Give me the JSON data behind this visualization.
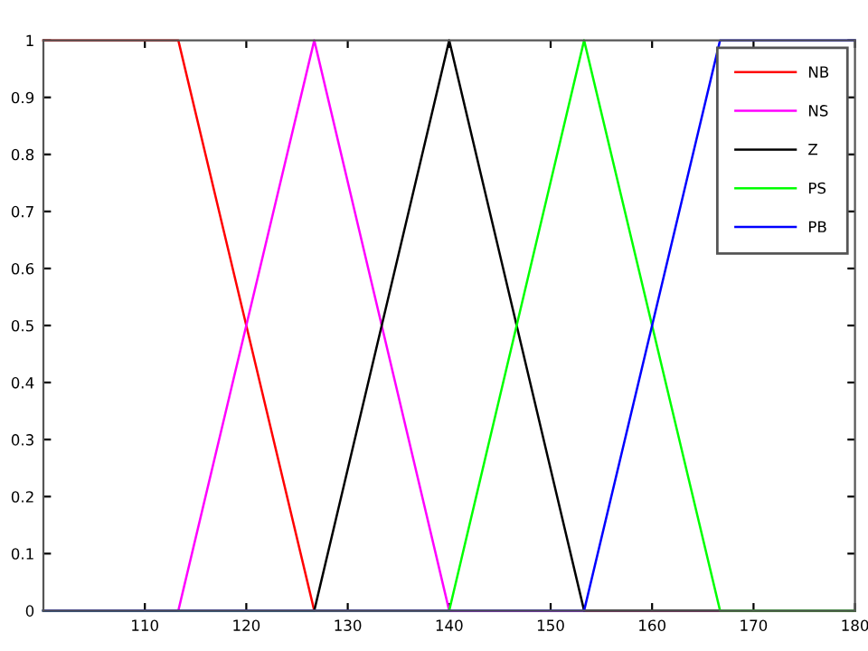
{
  "chart_data": {
    "type": "line",
    "xlim": [
      100,
      180
    ],
    "ylim": [
      0,
      1
    ],
    "xticks": [
      110,
      120,
      130,
      140,
      150,
      160,
      170,
      180
    ],
    "yticks": [
      0,
      0.1,
      0.2,
      0.3,
      0.4,
      0.5,
      0.6,
      0.7,
      0.8,
      0.9,
      1
    ],
    "grid": false,
    "legend": "top right",
    "marker": "none",
    "line_style": "solid",
    "series": [
      {
        "name": "NB",
        "color": "#ff0000",
        "x": [
          100,
          113.3,
          126.7,
          180
        ],
        "values": [
          1,
          1,
          0,
          0
        ]
      },
      {
        "name": "NS",
        "color": "#ff00ff",
        "x": [
          100,
          113.3,
          126.7,
          140,
          180
        ],
        "values": [
          0,
          0,
          1,
          0,
          0
        ]
      },
      {
        "name": "Z",
        "color": "#000000",
        "x": [
          100,
          126.7,
          140,
          153.3,
          180
        ],
        "values": [
          0,
          0,
          1,
          0,
          0
        ]
      },
      {
        "name": "PS",
        "color": "#00ff00",
        "x": [
          100,
          140,
          153.3,
          166.7,
          180
        ],
        "values": [
          0,
          0,
          1,
          0,
          0
        ]
      },
      {
        "name": "PB",
        "color": "#0000ff",
        "x": [
          100,
          153.3,
          166.7,
          180
        ],
        "values": [
          0,
          0,
          1,
          1
        ]
      }
    ]
  }
}
